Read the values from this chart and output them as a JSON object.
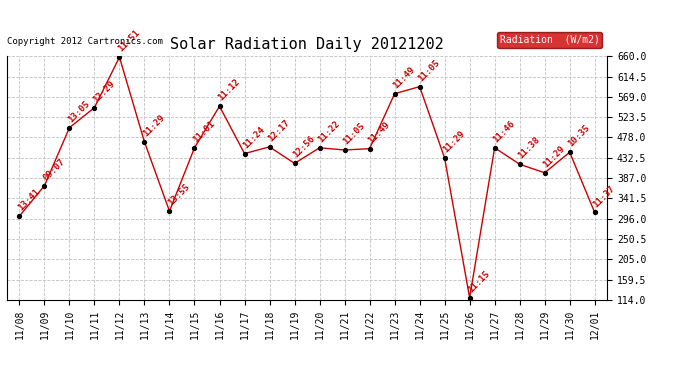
{
  "title": "Solar Radiation Daily 20121202",
  "copyright": "Copyright 2012 Cartronics.com",
  "legend_label": "Radiation  (W/m2)",
  "x_labels": [
    "11/08",
    "11/09",
    "11/10",
    "11/11",
    "11/12",
    "11/13",
    "11/14",
    "11/15",
    "11/16",
    "11/17",
    "11/18",
    "11/19",
    "11/20",
    "11/21",
    "11/22",
    "11/23",
    "11/24",
    "11/25",
    "11/26",
    "11/27",
    "11/28",
    "11/29",
    "11/30",
    "12/01"
  ],
  "y_values": [
    302,
    370,
    500,
    545,
    658,
    468,
    313,
    455,
    548,
    442,
    457,
    420,
    455,
    450,
    453,
    576,
    592,
    432,
    119,
    455,
    418,
    399,
    445,
    310
  ],
  "time_labels": [
    "13:41",
    "09:07",
    "13:05",
    "12:29",
    "11:51",
    "11:29",
    "13:55",
    "11:01",
    "11:12",
    "11:24",
    "12:17",
    "12:56",
    "11:22",
    "11:05",
    "11:49",
    "11:49",
    "11:05",
    "11:29",
    "11:15",
    "11:46",
    "11:38",
    "11:29",
    "10:35",
    "11:37"
  ],
  "ylim": [
    114.0,
    660.0
  ],
  "yticks": [
    114.0,
    159.5,
    205.0,
    250.5,
    296.0,
    341.5,
    387.0,
    432.5,
    478.0,
    523.5,
    569.0,
    614.5,
    660.0
  ],
  "line_color": "#cc0000",
  "marker_color": "#000000",
  "bg_color": "#ffffff",
  "grid_color": "#c0c0c0",
  "legend_bg": "#cc0000",
  "legend_text_color": "#ffffff",
  "title_fontsize": 11,
  "tick_fontsize": 7,
  "annotation_fontsize": 6.5
}
